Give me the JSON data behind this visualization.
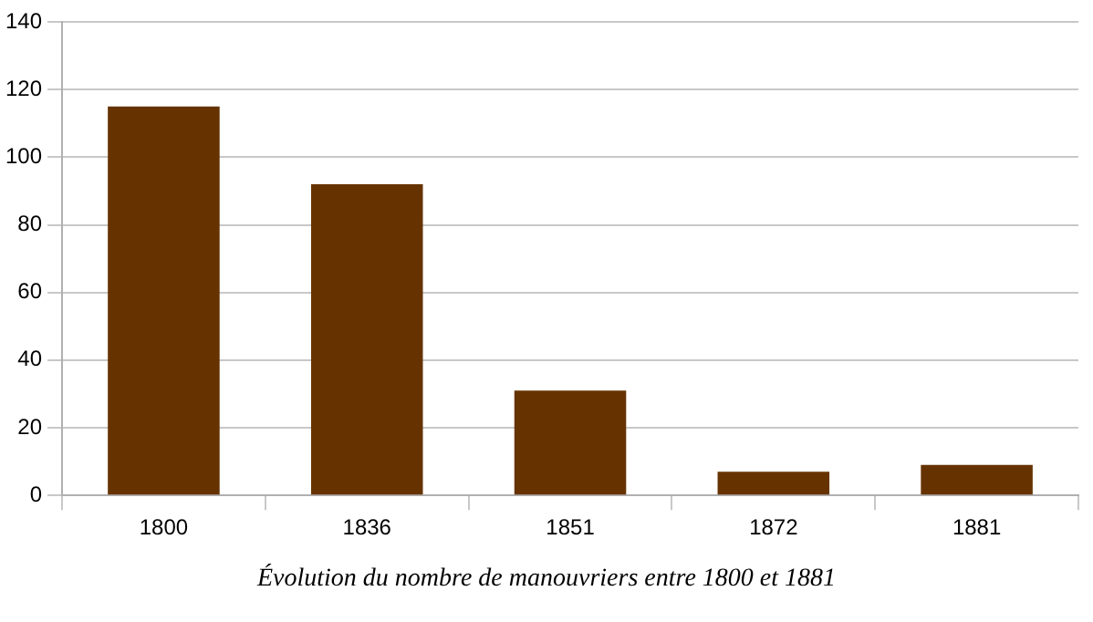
{
  "chart_data": {
    "type": "bar",
    "categories": [
      "1800",
      "1836",
      "1851",
      "1872",
      "1881"
    ],
    "values": [
      115,
      92,
      31,
      7,
      9
    ],
    "color": "#663300",
    "ylim": [
      0,
      140
    ],
    "yticks": [
      0,
      20,
      40,
      60,
      80,
      100,
      120,
      140
    ],
    "grid": "y",
    "legend": false,
    "annotations": [
      "Évolution du nombre de manouvriers entre 1800 et 1881"
    ]
  }
}
